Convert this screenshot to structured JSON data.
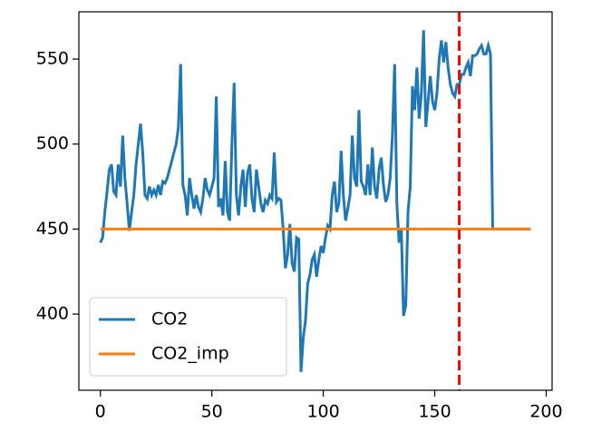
{
  "chart_data": {
    "type": "line",
    "x": [
      0,
      1,
      2,
      3,
      4,
      5,
      6,
      7,
      8,
      9,
      10,
      11,
      12,
      13,
      14,
      15,
      16,
      17,
      18,
      19,
      20,
      21,
      22,
      23,
      24,
      25,
      26,
      27,
      28,
      29,
      30,
      31,
      32,
      33,
      34,
      35,
      36,
      37,
      38,
      39,
      40,
      41,
      42,
      43,
      44,
      45,
      46,
      47,
      48,
      49,
      50,
      51,
      52,
      53,
      54,
      55,
      56,
      57,
      58,
      59,
      60,
      61,
      62,
      63,
      64,
      65,
      66,
      67,
      68,
      69,
      70,
      71,
      72,
      73,
      74,
      75,
      76,
      77,
      78,
      79,
      80,
      81,
      82,
      83,
      84,
      85,
      86,
      87,
      88,
      89,
      90,
      91,
      92,
      93,
      94,
      95,
      96,
      97,
      98,
      99,
      100,
      101,
      102,
      103,
      104,
      105,
      106,
      107,
      108,
      109,
      110,
      111,
      112,
      113,
      114,
      115,
      116,
      117,
      118,
      119,
      120,
      121,
      122,
      123,
      124,
      125,
      126,
      127,
      128,
      129,
      130,
      131,
      132,
      133,
      134,
      135,
      136,
      137,
      138,
      139,
      140,
      141,
      142,
      143,
      144,
      145,
      146,
      147,
      148,
      149,
      150,
      151,
      152,
      153,
      154,
      155,
      156,
      157,
      158,
      159,
      160,
      161,
      162,
      163,
      164,
      165,
      166,
      167,
      168,
      169,
      170,
      171,
      172,
      173,
      174,
      175,
      176,
      177,
      178,
      179,
      180,
      181,
      182,
      183,
      184,
      185,
      186,
      187,
      188,
      189,
      190,
      191,
      192,
      193
    ],
    "series": [
      {
        "name": "CO2",
        "color": "#1f77b4",
        "values": [
          442,
          445,
          460,
          472,
          485,
          488,
          472,
          470,
          488,
          475,
          505,
          480,
          465,
          449,
          460,
          470,
          488,
          500,
          512,
          495,
          470,
          468,
          475,
          470,
          473,
          470,
          476,
          470,
          478,
          477,
          480,
          485,
          490,
          495,
          500,
          510,
          547,
          476,
          470,
          458,
          480,
          470,
          462,
          470,
          463,
          460,
          468,
          480,
          473,
          470,
          475,
          480,
          528,
          463,
          468,
          458,
          490,
          460,
          455,
          500,
          536,
          470,
          458,
          475,
          485,
          463,
          483,
          488,
          468,
          460,
          485,
          475,
          465,
          460,
          467,
          465,
          470,
          468,
          495,
          466,
          468,
          467,
          450,
          427,
          435,
          453,
          430,
          425,
          445,
          444,
          366,
          386,
          396,
          418,
          423,
          432,
          435,
          422,
          432,
          440,
          436,
          445,
          452,
          450,
          470,
          478,
          460,
          465,
          496,
          470,
          455,
          462,
          470,
          505,
          480,
          475,
          520,
          478,
          475,
          470,
          488,
          470,
          498,
          475,
          468,
          485,
          492,
          476,
          466,
          470,
          480,
          505,
          547,
          465,
          442,
          450,
          399,
          405,
          460,
          475,
          534,
          520,
          545,
          515,
          530,
          567,
          510,
          525,
          540,
          525,
          520,
          530,
          550,
          561,
          548,
          560,
          545,
          535,
          530,
          528,
          535,
          535,
          541,
          541,
          545,
          548,
          540,
          552,
          552,
          553,
          556,
          558,
          553,
          553,
          558,
          553,
          450,
          450,
          450,
          450,
          450,
          450,
          450,
          450,
          450,
          450,
          450,
          450,
          450,
          450,
          450,
          450,
          450,
          450
        ]
      },
      {
        "name": "CO2_imp",
        "color": "#ff7f0e",
        "values": [
          450,
          450,
          450,
          450,
          450,
          450,
          450,
          450,
          450,
          450,
          450,
          450,
          450,
          450,
          450,
          450,
          450,
          450,
          450,
          450,
          450,
          450,
          450,
          450,
          450,
          450,
          450,
          450,
          450,
          450,
          450,
          450,
          450,
          450,
          450,
          450,
          450,
          450,
          450,
          450,
          450,
          450,
          450,
          450,
          450,
          450,
          450,
          450,
          450,
          450,
          450,
          450,
          450,
          450,
          450,
          450,
          450,
          450,
          450,
          450,
          450,
          450,
          450,
          450,
          450,
          450,
          450,
          450,
          450,
          450,
          450,
          450,
          450,
          450,
          450,
          450,
          450,
          450,
          450,
          450,
          450,
          450,
          450,
          450,
          450,
          450,
          450,
          450,
          450,
          450,
          450,
          450,
          450,
          450,
          450,
          450,
          450,
          450,
          450,
          450,
          450,
          450,
          450,
          450,
          450,
          450,
          450,
          450,
          450,
          450,
          450,
          450,
          450,
          450,
          450,
          450,
          450,
          450,
          450,
          450,
          450,
          450,
          450,
          450,
          450,
          450,
          450,
          450,
          450,
          450,
          450,
          450,
          450,
          450,
          450,
          450,
          450,
          450,
          450,
          450,
          450,
          450,
          450,
          450,
          450,
          450,
          450,
          450,
          450,
          450,
          450,
          450,
          450,
          450,
          450,
          450,
          450,
          450,
          450,
          450,
          450,
          450,
          450,
          450,
          450,
          450,
          450,
          450,
          450,
          450,
          450,
          450,
          450,
          450,
          450,
          450,
          450,
          450,
          450,
          450,
          450,
          450,
          450,
          450,
          450,
          450,
          450,
          450,
          450,
          450,
          450,
          450,
          450,
          450
        ]
      }
    ],
    "vline": {
      "x": 161,
      "color": "#ff0000",
      "dashed": true
    },
    "xlim": [
      -9.65,
      202.65
    ],
    "xticks": [
      0,
      50,
      100,
      150,
      200
    ],
    "ylim": [
      355.2,
      577.8
    ],
    "yticks": [
      400,
      450,
      500,
      550
    ],
    "legend": "lower left"
  }
}
